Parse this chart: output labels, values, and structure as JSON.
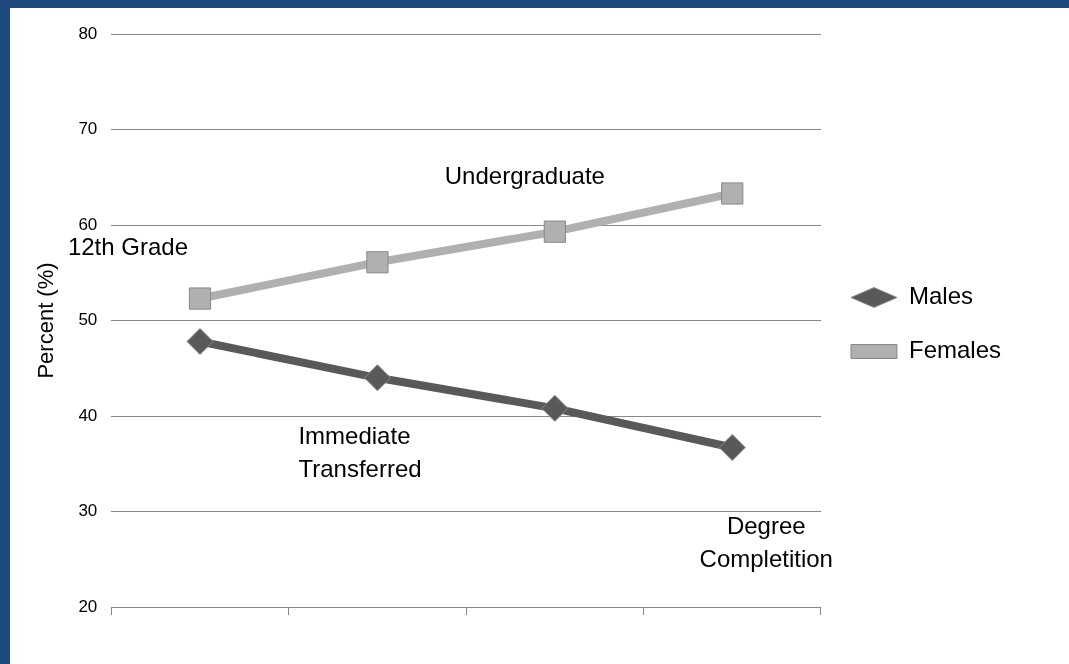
{
  "chart_data": {
    "type": "line",
    "ylabel": "Percent (%)",
    "categories": [
      "12th Grade",
      "Immediate Transferred",
      "Undergraduate",
      "Degree Completition"
    ],
    "series": [
      {
        "name": "Males",
        "color": "#595959",
        "marker": "diamond",
        "values": [
          47.8,
          44,
          40.8,
          36.7
        ]
      },
      {
        "name": "Females",
        "color": "#b0b0b0",
        "marker": "square",
        "values": [
          52.3,
          56.1,
          59.3,
          63.3
        ]
      }
    ],
    "ylim": [
      20,
      80
    ],
    "yticks": [
      20,
      30,
      40,
      50,
      60,
      70,
      80
    ],
    "grid": "y",
    "legend": "right",
    "tick_labels": "y",
    "line_style": "solid"
  }
}
